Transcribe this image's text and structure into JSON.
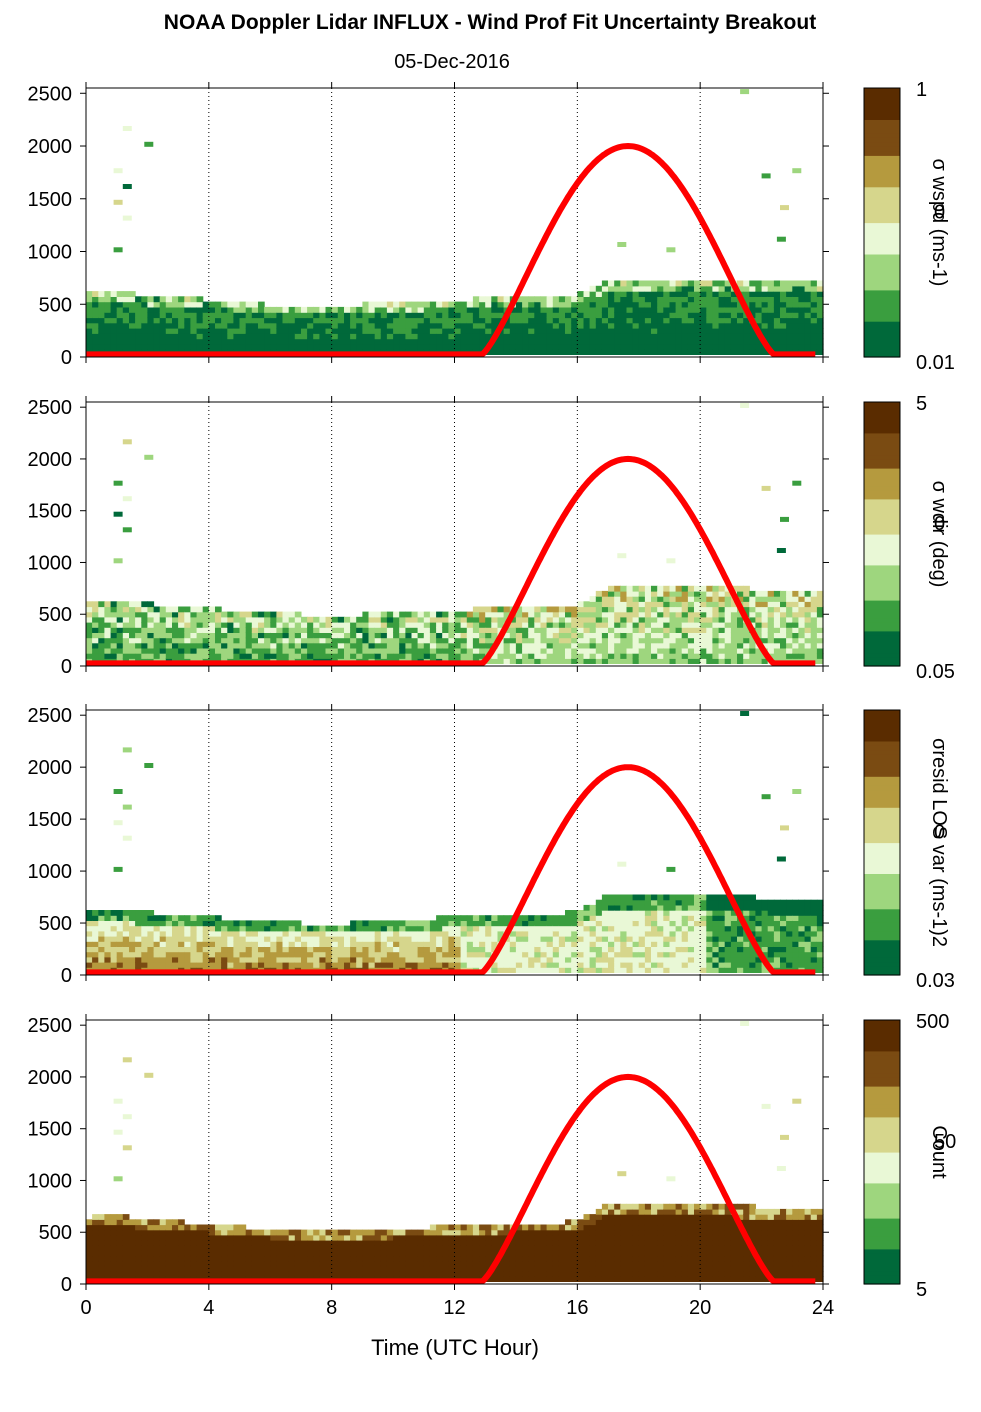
{
  "figure": {
    "title": "NOAA Doppler Lidar INFLUX - Wind Prof Fit Uncertainty Breakout",
    "subtitle": "05-Dec-2016",
    "xlabel": "Time (UTC Hour)"
  },
  "colors": {
    "sun_curve": "#ff0000",
    "colormap": [
      "#00693a",
      "#3a9e3f",
      "#9ed67e",
      "#e9f8d6",
      "#d6d68c",
      "#b59a3e",
      "#7a4b12",
      "#5a2c00"
    ]
  },
  "chart_data": [
    {
      "type": "heatmap",
      "name": "wspd",
      "xlabel": "",
      "ylabel": "",
      "xlim": [
        0,
        24
      ],
      "ylim": [
        0,
        2550
      ],
      "x_ticks": [
        0,
        4,
        8,
        12,
        16,
        20,
        24
      ],
      "y_ticks": [
        0,
        500,
        1000,
        1500,
        2000,
        2500
      ],
      "grid": "dotted vertical at x ticks",
      "colorbar": {
        "label": "σ wspd (ms-1)",
        "ticks": [
          "1",
          "0",
          "0.01"
        ],
        "scale": "log"
      },
      "profile_top_m": {
        "hours": [
          0,
          1,
          2,
          4,
          6,
          8,
          10,
          12,
          14,
          16,
          17,
          18,
          20,
          22,
          23.8
        ],
        "values": [
          580,
          600,
          560,
          520,
          470,
          470,
          480,
          520,
          540,
          560,
          720,
          700,
          720,
          700,
          700
        ]
      },
      "sun_curve": {
        "rise_hour": 12.9,
        "peak_hour": 17.6,
        "set_hour": 22.4,
        "peak_m": 2000,
        "base_m": 25
      }
    },
    {
      "type": "heatmap",
      "name": "wdir",
      "xlabel": "",
      "ylabel": "",
      "xlim": [
        0,
        24
      ],
      "ylim": [
        0,
        2550
      ],
      "x_ticks": [
        0,
        4,
        8,
        12,
        16,
        20,
        24
      ],
      "y_ticks": [
        0,
        500,
        1000,
        1500,
        2000,
        2500
      ],
      "grid": "dotted vertical at x ticks",
      "colorbar": {
        "label": "σ wdir (deg)",
        "ticks": [
          "5",
          "0",
          "0.05"
        ],
        "scale": "log"
      },
      "profile_top_m": {
        "hours": [
          0,
          1,
          2,
          4,
          6,
          8,
          10,
          12,
          14,
          16,
          17,
          18,
          20,
          22,
          23.8
        ],
        "values": [
          600,
          610,
          580,
          540,
          480,
          470,
          480,
          520,
          540,
          560,
          740,
          730,
          740,
          720,
          700
        ]
      },
      "sun_curve": {
        "rise_hour": 12.9,
        "peak_hour": 17.6,
        "set_hour": 22.4,
        "peak_m": 2000,
        "base_m": 25
      }
    },
    {
      "type": "heatmap",
      "name": "resid_los_var",
      "xlabel": "",
      "ylabel": "",
      "xlim": [
        0,
        24
      ],
      "ylim": [
        0,
        2550
      ],
      "x_ticks": [
        0,
        4,
        8,
        12,
        16,
        20,
        24
      ],
      "y_ticks": [
        0,
        500,
        1000,
        1500,
        2000,
        2500
      ],
      "grid": "dotted vertical at x ticks",
      "colorbar": {
        "label": "σresid LOS var (ms-1)2",
        "ticks": [
          "",
          "0",
          "0.03"
        ],
        "scale": "log"
      },
      "profile_top_m": {
        "hours": [
          0,
          1,
          2,
          4,
          6,
          8,
          10,
          12,
          14,
          16,
          17,
          18,
          20,
          22,
          23.8
        ],
        "values": [
          600,
          620,
          580,
          540,
          480,
          470,
          490,
          540,
          560,
          580,
          760,
          760,
          760,
          720,
          700
        ]
      },
      "sun_curve": {
        "rise_hour": 12.9,
        "peak_hour": 17.6,
        "set_hour": 22.4,
        "peak_m": 2000,
        "base_m": 25
      }
    },
    {
      "type": "heatmap",
      "name": "count",
      "xlabel": "Time (UTC Hour)",
      "ylabel": "",
      "xlim": [
        0,
        24
      ],
      "ylim": [
        0,
        2550
      ],
      "x_ticks": [
        0,
        4,
        8,
        12,
        16,
        20,
        24
      ],
      "y_ticks": [
        0,
        500,
        1000,
        1500,
        2000,
        2500
      ],
      "grid": "dotted vertical at x ticks",
      "colorbar": {
        "label": "Count",
        "ticks": [
          "500",
          "50",
          "5"
        ],
        "scale": "log"
      },
      "profile_top_m": {
        "hours": [
          0,
          1,
          2,
          4,
          6,
          8,
          10,
          12,
          14,
          16,
          17,
          18,
          20,
          22,
          23.8
        ],
        "values": [
          620,
          640,
          600,
          560,
          500,
          490,
          500,
          540,
          560,
          580,
          760,
          760,
          760,
          720,
          700
        ]
      },
      "sun_curve": {
        "rise_hour": 12.9,
        "peak_hour": 17.6,
        "set_hour": 22.4,
        "peak_m": 2000,
        "base_m": 25
      }
    }
  ]
}
